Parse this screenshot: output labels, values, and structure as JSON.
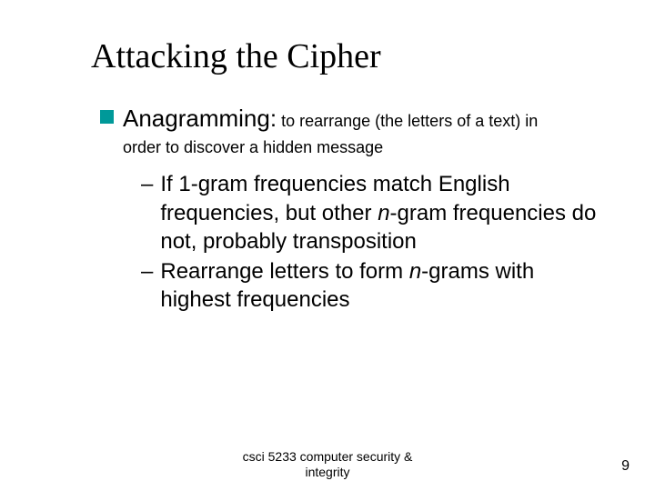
{
  "title": "Attacking the Cipher",
  "bullet": {
    "term": "Anagramming:",
    "definition_part1": "to rearrange (the letters of a text) in",
    "definition_part2": "order to discover a hidden message",
    "square_color": "#009999"
  },
  "sub": [
    {
      "dash": "–",
      "pieces": [
        {
          "t": "If 1-gram frequencies match English frequencies, but other ",
          "i": false
        },
        {
          "t": "n",
          "i": true
        },
        {
          "t": "-gram frequencies do not, probably transposition",
          "i": false
        }
      ]
    },
    {
      "dash": "–",
      "pieces": [
        {
          "t": "Rearrange letters to form ",
          "i": false
        },
        {
          "t": "n",
          "i": true
        },
        {
          "t": "-grams with highest frequencies",
          "i": false
        }
      ]
    }
  ],
  "footer_line1": "csci 5233 computer security &",
  "footer_line2": "integrity",
  "page_number": "9"
}
